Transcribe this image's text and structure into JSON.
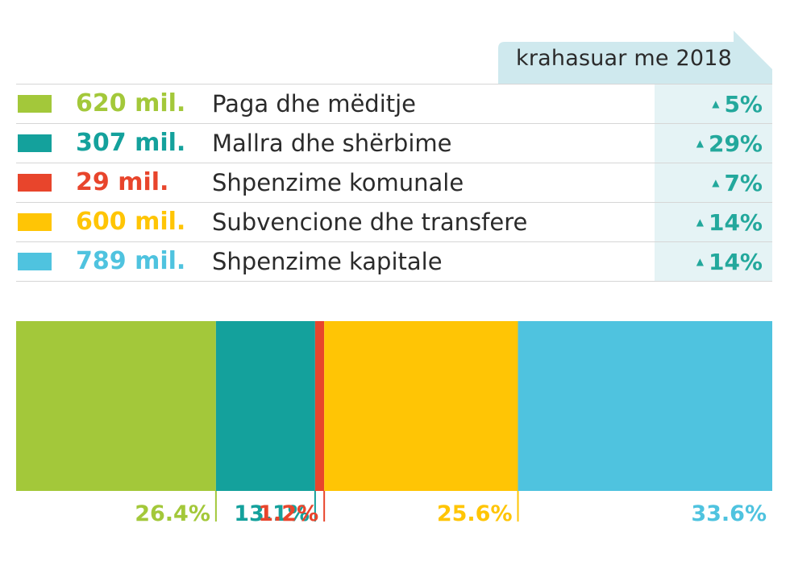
{
  "compare_label": "krahasuar me 2018",
  "colors": {
    "header_tab": "#cfe9ee",
    "change_cell": "#e5f3f5",
    "change_text": "#23a89c",
    "divider": "#d6d6d6"
  },
  "chart_data": {
    "type": "bar",
    "stacked": true,
    "orientation": "horizontal-100%",
    "categories": [
      "Paga dhe mëditje",
      "Mallra dhe shërbime",
      "Shpenzime komunale",
      "Subvencione dhe transfere",
      "Shpenzime kapitale"
    ],
    "amounts": [
      620,
      307,
      29,
      600,
      789
    ],
    "amount_labels": [
      "620 mil.",
      "307 mil.",
      "29 mil.",
      "600 mil.",
      "789 mil."
    ],
    "shares": [
      26.4,
      13.1,
      1.2,
      25.6,
      33.6
    ],
    "share_labels": [
      "26.4%",
      "13.1%",
      "1.2%",
      "25.6%",
      "33.6%"
    ],
    "change_vs_2018": [
      5,
      29,
      7,
      14,
      14
    ],
    "change_labels": [
      "5%",
      "29%",
      "7%",
      "14%",
      "14%"
    ],
    "colors": [
      "#a3c83a",
      "#14a19c",
      "#e8452c",
      "#ffc505",
      "#4fc3df"
    ],
    "legend_placement": "top"
  }
}
